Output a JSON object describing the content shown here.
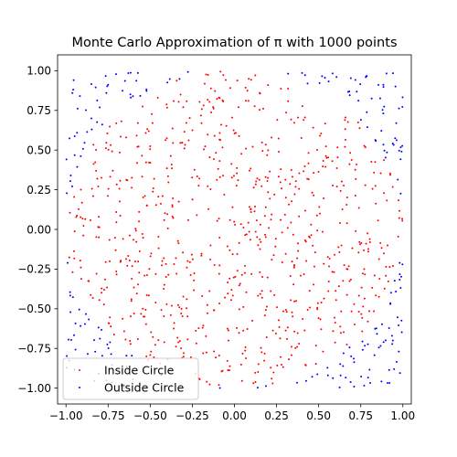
{
  "chart_data": {
    "type": "scatter",
    "title": "Monte Carlo Approximation of π with 1000 points",
    "xlabel": "",
    "ylabel": "",
    "xlim": [
      -1.05,
      1.05
    ],
    "ylim": [
      -1.1,
      1.1
    ],
    "x_ticks": [
      -1.0,
      -0.75,
      -0.5,
      -0.25,
      0.0,
      0.25,
      0.5,
      0.75,
      1.0
    ],
    "x_tick_labels": [
      "−1.00",
      "−0.75",
      "−0.50",
      "−0.25",
      "0.00",
      "0.25",
      "0.50",
      "0.75",
      "1.00"
    ],
    "y_ticks": [
      1.0,
      0.75,
      0.5,
      0.25,
      0.0,
      -0.25,
      -0.5,
      -0.75,
      -1.0
    ],
    "y_tick_labels": [
      "1.00",
      "0.75",
      "0.50",
      "0.25",
      "0.00",
      "−0.25",
      "−0.50",
      "−0.75",
      "−1.00"
    ],
    "grid": false,
    "legend_position": "lower-left",
    "total_points": 1000,
    "series": [
      {
        "name": "Inside Circle",
        "color": "#ff0000",
        "points": [
          [
            0.0,
            0.0
          ],
          [
            0.3,
            0.2
          ],
          [
            -0.4,
            0.5
          ],
          [
            0.6,
            -0.3
          ],
          [
            -0.7,
            -0.2
          ],
          [
            0.1,
            -0.8
          ],
          [
            -0.2,
            0.9
          ],
          [
            0.8,
            0.4
          ],
          [
            -0.5,
            -0.6
          ],
          [
            0.45,
            0.7
          ],
          [
            -0.85,
            0.3
          ],
          [
            0.2,
            -0.5
          ]
        ]
      },
      {
        "name": "Outside Circle",
        "color": "#0000ff",
        "points": [
          [
            -0.95,
            0.95
          ],
          [
            0.92,
            0.93
          ],
          [
            -0.96,
            -0.9
          ],
          [
            0.95,
            -0.92
          ],
          [
            0.75,
            0.8
          ],
          [
            -0.8,
            0.75
          ],
          [
            0.82,
            -0.78
          ],
          [
            -0.78,
            -0.82
          ]
        ]
      }
    ]
  }
}
